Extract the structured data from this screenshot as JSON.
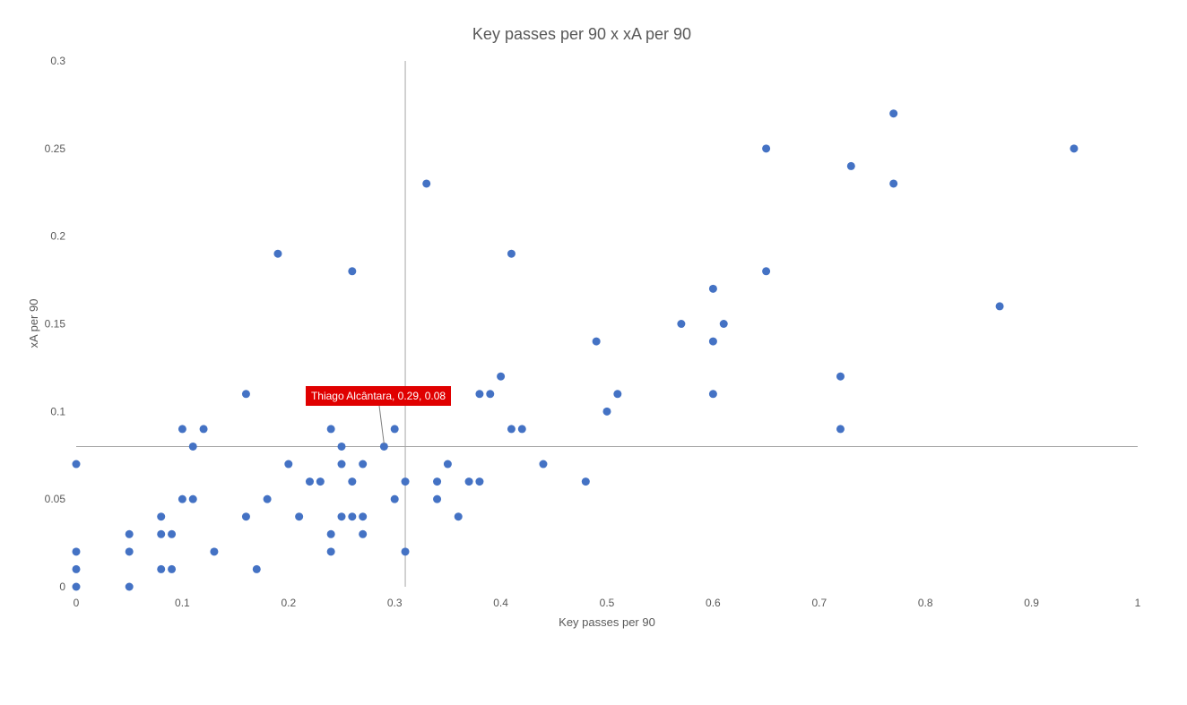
{
  "chart_data": {
    "type": "scatter",
    "title": "Key passes per 90 x xA per 90",
    "xlabel": "Key passes per 90",
    "ylabel": "xA per 90",
    "xlim": [
      0,
      1
    ],
    "ylim": [
      0,
      0.3
    ],
    "xticks": [
      "0",
      "0.1",
      "0.2",
      "0.3",
      "0.4",
      "0.5",
      "0.6",
      "0.7",
      "0.8",
      "0.9",
      "1"
    ],
    "yticks": [
      "0",
      "0.05",
      "0.1",
      "0.15",
      "0.2",
      "0.25",
      "0.3"
    ],
    "reference_lines": {
      "x": 0.31,
      "y": 0.08
    },
    "point_color": "#4472c4",
    "annotation": {
      "text": "Thiago Alcântara, 0.29, 0.08",
      "x": 0.29,
      "y": 0.08,
      "background": "#e00000"
    },
    "points": [
      {
        "x": 0,
        "y": 0.07
      },
      {
        "x": 0,
        "y": 0.02
      },
      {
        "x": 0,
        "y": 0.01
      },
      {
        "x": 0,
        "y": 0
      },
      {
        "x": 0.05,
        "y": 0.03
      },
      {
        "x": 0.05,
        "y": 0.02
      },
      {
        "x": 0.05,
        "y": 0
      },
      {
        "x": 0.08,
        "y": 0.04
      },
      {
        "x": 0.08,
        "y": 0.03
      },
      {
        "x": 0.08,
        "y": 0.01
      },
      {
        "x": 0.09,
        "y": 0.03
      },
      {
        "x": 0.09,
        "y": 0.01
      },
      {
        "x": 0.1,
        "y": 0.09
      },
      {
        "x": 0.1,
        "y": 0.05
      },
      {
        "x": 0.11,
        "y": 0.08
      },
      {
        "x": 0.11,
        "y": 0.05
      },
      {
        "x": 0.12,
        "y": 0.09
      },
      {
        "x": 0.13,
        "y": 0.02
      },
      {
        "x": 0.16,
        "y": 0.11
      },
      {
        "x": 0.16,
        "y": 0.04
      },
      {
        "x": 0.17,
        "y": 0.01
      },
      {
        "x": 0.18,
        "y": 0.05
      },
      {
        "x": 0.19,
        "y": 0.19
      },
      {
        "x": 0.2,
        "y": 0.07
      },
      {
        "x": 0.21,
        "y": 0.04
      },
      {
        "x": 0.22,
        "y": 0.06
      },
      {
        "x": 0.23,
        "y": 0.06
      },
      {
        "x": 0.24,
        "y": 0.09
      },
      {
        "x": 0.24,
        "y": 0.03
      },
      {
        "x": 0.24,
        "y": 0.02
      },
      {
        "x": 0.25,
        "y": 0.08
      },
      {
        "x": 0.25,
        "y": 0.07
      },
      {
        "x": 0.25,
        "y": 0.04
      },
      {
        "x": 0.26,
        "y": 0.18
      },
      {
        "x": 0.26,
        "y": 0.06
      },
      {
        "x": 0.26,
        "y": 0.04
      },
      {
        "x": 0.27,
        "y": 0.07
      },
      {
        "x": 0.27,
        "y": 0.04
      },
      {
        "x": 0.27,
        "y": 0.03
      },
      {
        "x": 0.29,
        "y": 0.08
      },
      {
        "x": 0.3,
        "y": 0.09
      },
      {
        "x": 0.3,
        "y": 0.05
      },
      {
        "x": 0.31,
        "y": 0.06
      },
      {
        "x": 0.31,
        "y": 0.02
      },
      {
        "x": 0.33,
        "y": 0.23
      },
      {
        "x": 0.34,
        "y": 0.06
      },
      {
        "x": 0.34,
        "y": 0.05
      },
      {
        "x": 0.35,
        "y": 0.07
      },
      {
        "x": 0.36,
        "y": 0.04
      },
      {
        "x": 0.37,
        "y": 0.06
      },
      {
        "x": 0.38,
        "y": 0.11
      },
      {
        "x": 0.38,
        "y": 0.06
      },
      {
        "x": 0.39,
        "y": 0.11
      },
      {
        "x": 0.4,
        "y": 0.12
      },
      {
        "x": 0.41,
        "y": 0.19
      },
      {
        "x": 0.41,
        "y": 0.09
      },
      {
        "x": 0.42,
        "y": 0.09
      },
      {
        "x": 0.44,
        "y": 0.07
      },
      {
        "x": 0.48,
        "y": 0.06
      },
      {
        "x": 0.49,
        "y": 0.14
      },
      {
        "x": 0.5,
        "y": 0.1
      },
      {
        "x": 0.51,
        "y": 0.11
      },
      {
        "x": 0.57,
        "y": 0.15
      },
      {
        "x": 0.6,
        "y": 0.17
      },
      {
        "x": 0.6,
        "y": 0.14
      },
      {
        "x": 0.6,
        "y": 0.11
      },
      {
        "x": 0.61,
        "y": 0.15
      },
      {
        "x": 0.65,
        "y": 0.25
      },
      {
        "x": 0.65,
        "y": 0.18
      },
      {
        "x": 0.72,
        "y": 0.12
      },
      {
        "x": 0.72,
        "y": 0.09
      },
      {
        "x": 0.73,
        "y": 0.24
      },
      {
        "x": 0.77,
        "y": 0.27
      },
      {
        "x": 0.77,
        "y": 0.23
      },
      {
        "x": 0.87,
        "y": 0.16
      },
      {
        "x": 0.94,
        "y": 0.25
      }
    ]
  }
}
